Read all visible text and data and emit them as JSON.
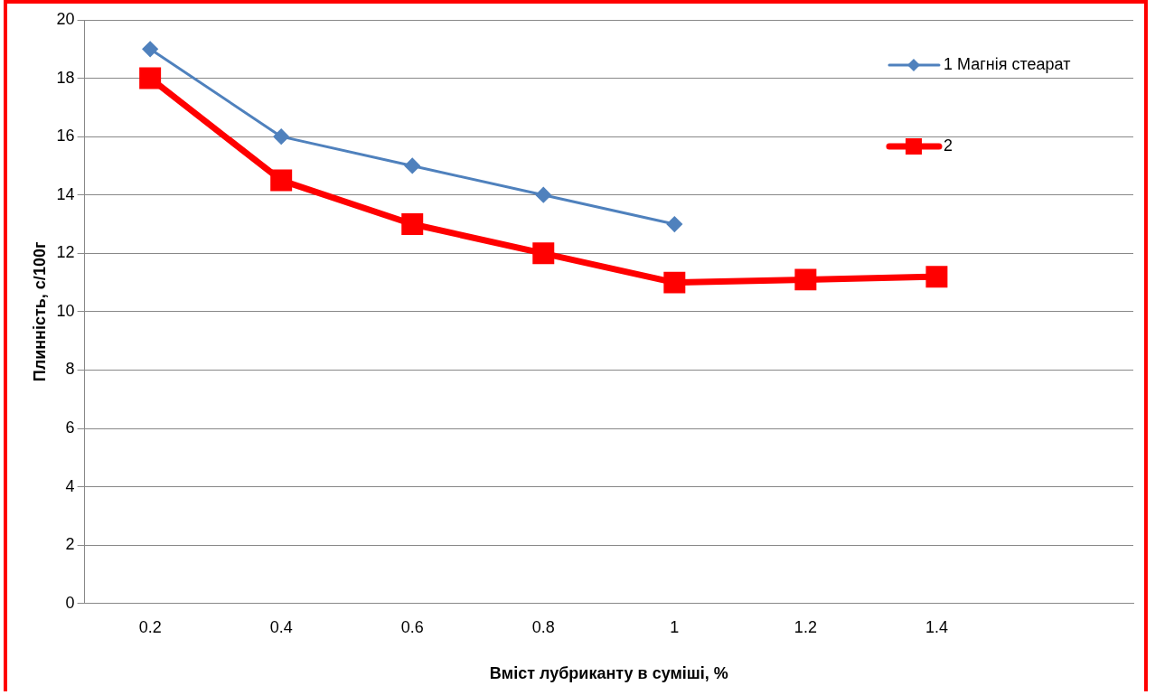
{
  "chart_data": {
    "type": "line",
    "xlabel": "Вміст лубриканту в суміші, %",
    "ylabel": "Плинність, с/100г",
    "categories": [
      "0.2",
      "0.4",
      "0.6",
      "0.8",
      "1",
      "1.2",
      "1.4",
      null
    ],
    "series": [
      {
        "name": "1 Магнія стеарат",
        "color": "#4f81bd",
        "marker": "diamond",
        "values": [
          19,
          16,
          15,
          14,
          13,
          null,
          null,
          null
        ]
      },
      {
        "name": "2",
        "color": "#ff0000",
        "marker": "square",
        "values": [
          18,
          14.5,
          13,
          12,
          11,
          11.1,
          11.2,
          null
        ]
      }
    ],
    "ylim": [
      0,
      20
    ],
    "yticks": [
      0,
      2,
      4,
      6,
      8,
      10,
      12,
      14,
      16,
      18,
      20
    ],
    "grid": "y",
    "legend": "top right"
  }
}
